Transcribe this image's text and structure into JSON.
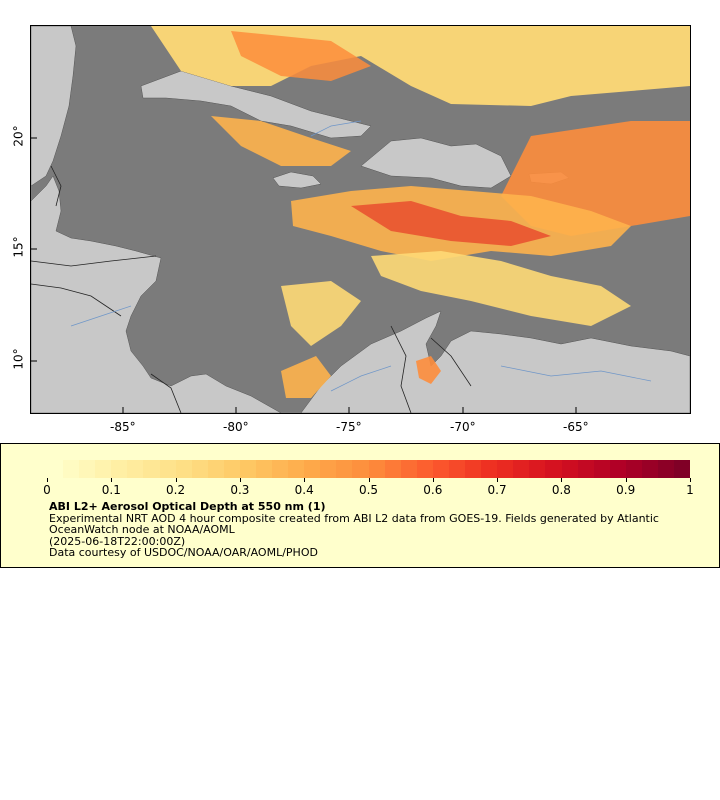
{
  "map": {
    "lon_labels": [
      "-85°",
      "-80°",
      "-75°",
      "-70°",
      "-65°"
    ],
    "lat_labels": [
      "10°",
      "15°",
      "20°"
    ],
    "colors": {
      "ocean": "#7b7b7b",
      "land": "#c8c8c8",
      "border": "#222222",
      "rivers": "#6f96c8"
    }
  },
  "legend": {
    "tick_labels": [
      "0",
      "0.1",
      "0.2",
      "0.3",
      "0.4",
      "0.5",
      "0.6",
      "0.7",
      "0.8",
      "0.9",
      "1"
    ],
    "title": "ABI L2+ Aerosol Optical Depth at 550 nm (1)",
    "line1": "Experimental NRT AOD 4 hour composite created from ABI L2 data from GOES-19. Fields generated by Atlantic OceanWatch node at NOAA/AOML",
    "line2": "(2025-06-18T22:00:00Z)",
    "line3": "Data courtesy of USDOC/NOAA/OAR/AOML/PHOD",
    "colormap": [
      "#ffffcc",
      "#ffefa5",
      "#fee087",
      "#fec965",
      "#feab4b",
      "#fd8d3c",
      "#fc5b2e",
      "#ed2e21",
      "#d41020",
      "#b00026",
      "#800026"
    ]
  }
}
